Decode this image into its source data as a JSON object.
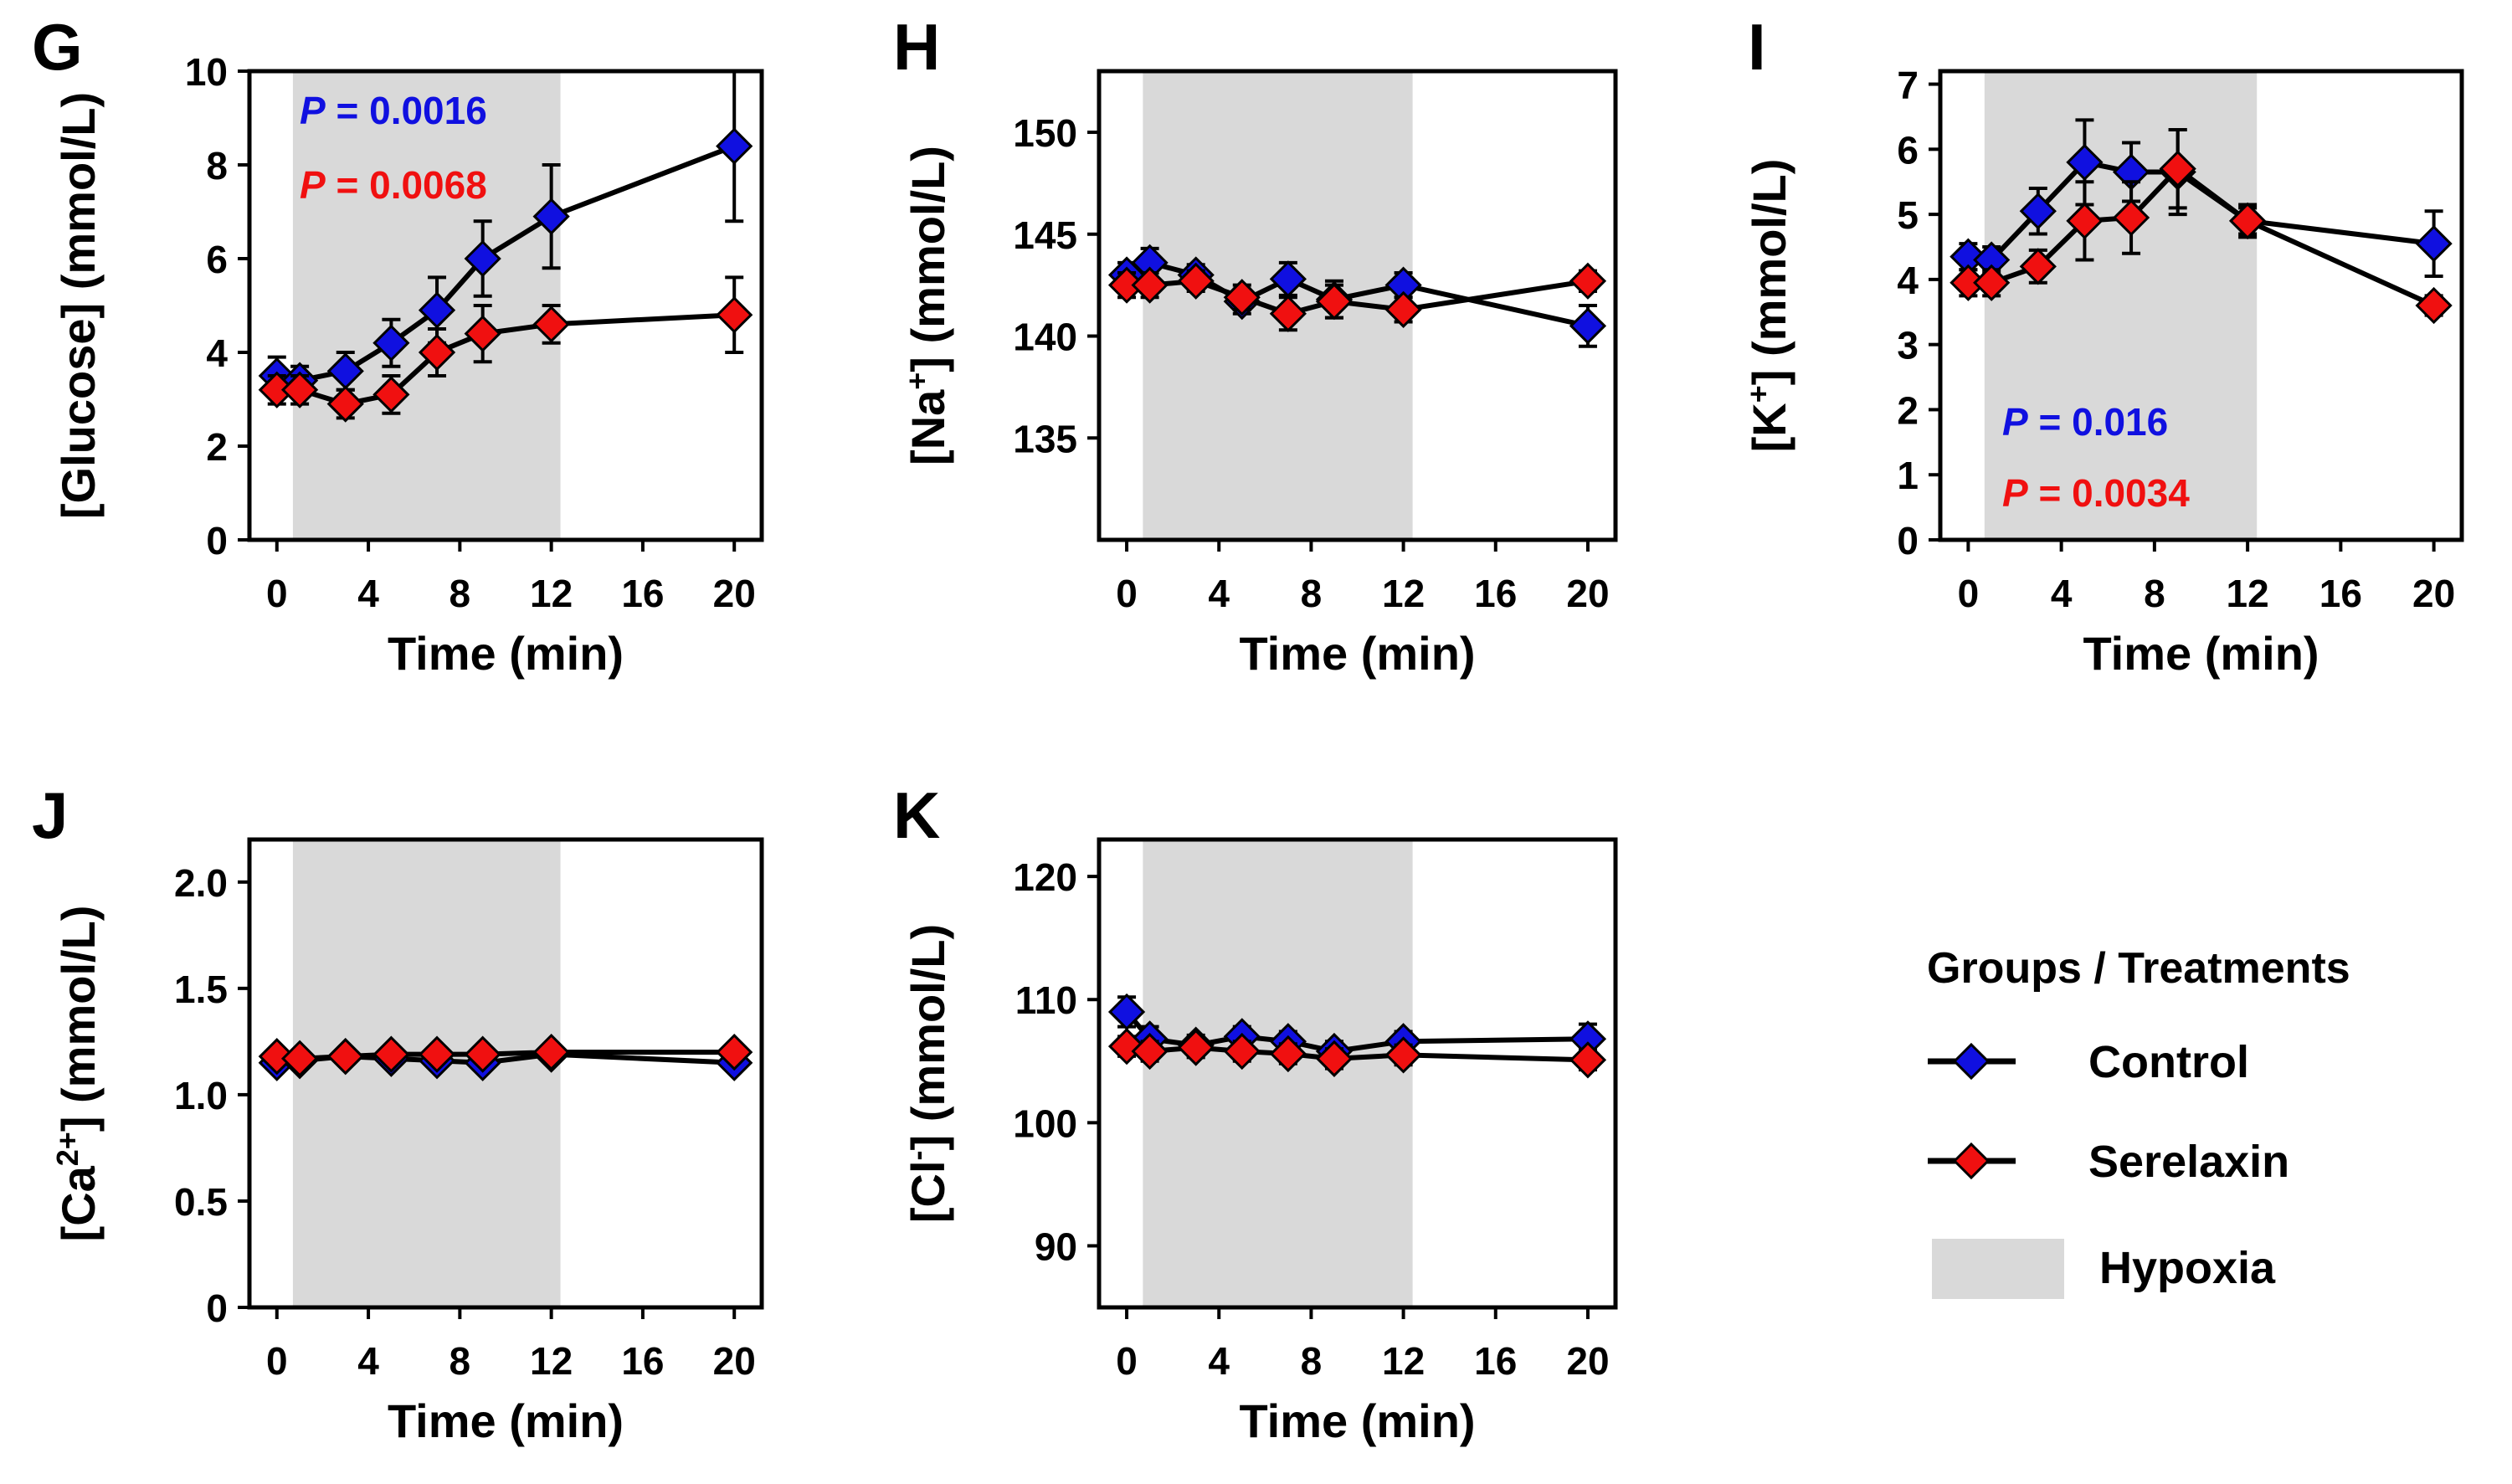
{
  "figure": {
    "x_ticks": [
      "0",
      "4",
      "8",
      "12",
      "16",
      "20"
    ],
    "x_label": "Time (min)",
    "hypoxia_range": [
      0.7,
      12.4
    ],
    "colors": {
      "control": "#1010e0",
      "serelaxin": "#f01010",
      "hypoxia": "#d9d9d9",
      "line": "#000000"
    }
  },
  "legend": {
    "title": "Groups / Treatments",
    "control": "Control",
    "serelaxin": "Serelaxin",
    "hypoxia": "Hypoxia"
  },
  "chart_data": [
    {
      "id": "G",
      "panel": "G",
      "type": "line",
      "ylabel": "[Glucose] (mmol/L)",
      "ylim": [
        0,
        10
      ],
      "yticks": [
        0,
        2,
        4,
        6,
        8,
        10
      ],
      "x": [
        0,
        1,
        3,
        5,
        7,
        9,
        12,
        20
      ],
      "series": [
        {
          "name": "Control",
          "values": [
            3.5,
            3.4,
            3.6,
            4.2,
            4.9,
            6.0,
            6.9,
            8.4
          ],
          "err": [
            0.4,
            0.3,
            0.4,
            0.5,
            0.7,
            0.8,
            1.1,
            1.6
          ]
        },
        {
          "name": "Serelaxin",
          "values": [
            3.2,
            3.2,
            2.9,
            3.1,
            4.0,
            4.4,
            4.6,
            4.8
          ],
          "err": [
            0.3,
            0.3,
            0.3,
            0.4,
            0.5,
            0.6,
            0.4,
            0.8
          ]
        }
      ],
      "annotations": [
        {
          "prefix": "P",
          "text": " = 0.0016",
          "series": "Control"
        },
        {
          "prefix": "P",
          "text": " = 0.0068",
          "series": "Serelaxin"
        }
      ]
    },
    {
      "id": "H",
      "panel": "H",
      "type": "line",
      "ylabel_main": "[Na",
      "ylabel_sup": "+",
      "ylabel_tail": "] (mmol/L)",
      "ylim": [
        130,
        153
      ],
      "yticks": [
        135,
        140,
        145,
        150
      ],
      "x": [
        0,
        1,
        3,
        5,
        7,
        9,
        12,
        20
      ],
      "series": [
        {
          "name": "Control",
          "values": [
            143.0,
            143.6,
            143.0,
            141.7,
            142.8,
            141.8,
            142.5,
            140.5
          ],
          "err": [
            0.6,
            0.7,
            0.5,
            0.6,
            0.8,
            0.9,
            0.6,
            1.0
          ]
        },
        {
          "name": "Serelaxin",
          "values": [
            142.5,
            142.5,
            142.7,
            141.9,
            141.1,
            141.7,
            141.3,
            142.7
          ],
          "err": [
            0.6,
            0.6,
            0.5,
            0.6,
            0.8,
            0.8,
            0.6,
            0.5
          ]
        }
      ],
      "annotations": []
    },
    {
      "id": "I",
      "panel": "I",
      "type": "line",
      "ylabel_main": "[K",
      "ylabel_sup": "+",
      "ylabel_tail": "] (mmol/L)",
      "ylim": [
        0,
        7.2
      ],
      "yticks": [
        0,
        1,
        2,
        3,
        4,
        5,
        6,
        7
      ],
      "x": [
        0,
        1,
        3,
        5,
        7,
        9,
        12,
        20
      ],
      "series": [
        {
          "name": "Control",
          "values": [
            4.35,
            4.3,
            5.05,
            5.8,
            5.65,
            5.65,
            4.9,
            4.55
          ],
          "err": [
            0.2,
            0.2,
            0.35,
            0.65,
            0.45,
            0.65,
            0.25,
            0.5
          ]
        },
        {
          "name": "Serelaxin",
          "values": [
            3.95,
            3.95,
            4.2,
            4.9,
            4.95,
            5.7,
            4.9,
            3.6
          ],
          "err": [
            0.2,
            0.2,
            0.25,
            0.6,
            0.55,
            0.6,
            0.2,
            0.15
          ]
        }
      ],
      "annotations": [
        {
          "prefix": "P",
          "text": " = 0.016",
          "series": "Control"
        },
        {
          "prefix": "P",
          "text": " = 0.0034",
          "series": "Serelaxin"
        }
      ]
    },
    {
      "id": "J",
      "panel": "J",
      "type": "line",
      "ylabel_main": "[Ca",
      "ylabel_sup": "2+",
      "ylabel_tail": "] (mmol/L)",
      "ylim": [
        0,
        2.2
      ],
      "yticks": [
        0,
        0.5,
        1.0,
        1.5,
        2.0
      ],
      "ytick_labels": [
        "0",
        "0.5",
        "1.0",
        "1.5",
        "2.0"
      ],
      "x": [
        0,
        1,
        3,
        5,
        7,
        9,
        12,
        20
      ],
      "series": [
        {
          "name": "Control",
          "values": [
            1.15,
            1.16,
            1.18,
            1.17,
            1.16,
            1.15,
            1.19,
            1.15
          ],
          "err": [
            0.03,
            0.03,
            0.03,
            0.03,
            0.03,
            0.03,
            0.03,
            0.03
          ]
        },
        {
          "name": "Serelaxin",
          "values": [
            1.18,
            1.17,
            1.18,
            1.19,
            1.19,
            1.19,
            1.2,
            1.2
          ],
          "err": [
            0.03,
            0.03,
            0.03,
            0.03,
            0.03,
            0.03,
            0.03,
            0.03
          ]
        }
      ],
      "annotations": []
    },
    {
      "id": "K",
      "panel": "K",
      "type": "line",
      "ylabel_main": "[Cl",
      "ylabel_sup": "-",
      "ylabel_tail": "] (mmol/L)",
      "ylim": [
        85,
        123
      ],
      "yticks": [
        90,
        100,
        110,
        120
      ],
      "x": [
        0,
        1,
        3,
        5,
        7,
        9,
        12,
        20
      ],
      "series": [
        {
          "name": "Control",
          "values": [
            109.0,
            106.8,
            106.3,
            107.0,
            106.6,
            105.8,
            106.6,
            106.8
          ],
          "err": [
            1.2,
            1.0,
            0.8,
            0.8,
            0.8,
            0.8,
            0.8,
            1.2
          ]
        },
        {
          "name": "Serelaxin",
          "values": [
            106.2,
            105.8,
            106.1,
            105.8,
            105.6,
            105.2,
            105.5,
            105.1
          ],
          "err": [
            0.8,
            0.8,
            0.8,
            0.8,
            0.8,
            0.8,
            0.8,
            0.8
          ]
        }
      ],
      "annotations": []
    }
  ]
}
